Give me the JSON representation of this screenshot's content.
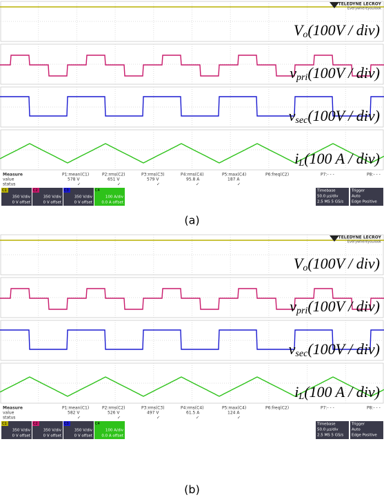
{
  "panels": [
    {
      "brand": "TELEDYNE LECROY",
      "tagline": "Everywhereyoulook",
      "traces": [
        {
          "label": "V",
          "sub": "o",
          "scale": "(100V / div)"
        },
        {
          "label": "v",
          "sub": "pri",
          "scale": "(100V / div)"
        },
        {
          "label": "v",
          "sub": "sec",
          "scale": "(100V / div)"
        },
        {
          "label": "i",
          "sub": "L",
          "scale": "(100 A / div)"
        }
      ],
      "measure": {
        "header": [
          "Measure",
          "P1:mean(C1)",
          "P2:rms(C2)",
          "P3:rms(C3)",
          "P4:rms(C4)",
          "P5:max(C4)",
          "P6:freq(C2)",
          "P7:- - -",
          "P8:- - -"
        ],
        "values": [
          "value",
          "578 V",
          "651 V",
          "579 V",
          "95.8 A",
          "187 A"
        ],
        "status": [
          "status",
          "✓",
          "✓",
          "✓",
          "✓",
          "✓"
        ]
      },
      "channels": [
        {
          "name": "C1",
          "scale": "350 V/div",
          "offset": "0 V offset"
        },
        {
          "name": "C2",
          "scale": "350 V/div",
          "offset": "0 V offset"
        },
        {
          "name": "C3",
          "scale": "350 V/div",
          "offset": "0 V offset"
        },
        {
          "name": "C4",
          "scale": "100 A/div",
          "offset": "0.0 A offset"
        }
      ],
      "timebase": [
        "Timebase",
        "50.0 µs/div",
        "2.5 MS  5 GS/s"
      ],
      "trigger": [
        "Trigger",
        "Auto",
        "Edge  Positive"
      ],
      "caption": "(a)"
    },
    {
      "brand": "TELEDYNE LECROY",
      "tagline": "Everywhereyoulook",
      "traces": [
        {
          "label": "V",
          "sub": "o",
          "scale": "(100V / div)"
        },
        {
          "label": "v",
          "sub": "pri",
          "scale": "(100V / div)"
        },
        {
          "label": "v",
          "sub": "sec",
          "scale": "(100V / div)"
        },
        {
          "label": "i",
          "sub": "L",
          "scale": "(100 A / div)"
        }
      ],
      "measure": {
        "header": [
          "Measure",
          "P1:mean(C1)",
          "P2:rms(C2)",
          "P3:rms(C3)",
          "P4:rms(C4)",
          "P5:max(C4)",
          "P6:freq(C2)",
          "P7:- - -",
          "P8:- - -"
        ],
        "values": [
          "value",
          "582 V",
          "526 V",
          "497 V",
          "61.5 A",
          "124 A"
        ],
        "status": [
          "status",
          "✓",
          "✓",
          "✓",
          "✓",
          "✓"
        ]
      },
      "channels": [
        {
          "name": "C1",
          "scale": "350 V/div",
          "offset": "0 V offset"
        },
        {
          "name": "C2",
          "scale": "350 V/div",
          "offset": "0 V offset"
        },
        {
          "name": "C3",
          "scale": "350 V/div",
          "offset": "0 V offset"
        },
        {
          "name": "C4",
          "scale": "100 A/div",
          "offset": "0.0 A offset"
        }
      ],
      "timebase": [
        "Timebase",
        "50.0 µs/div",
        "2.5 MS  5 GS/s"
      ],
      "trigger": [
        "Trigger",
        "Auto",
        "Edge  Positive"
      ],
      "caption": "(b)"
    }
  ]
}
